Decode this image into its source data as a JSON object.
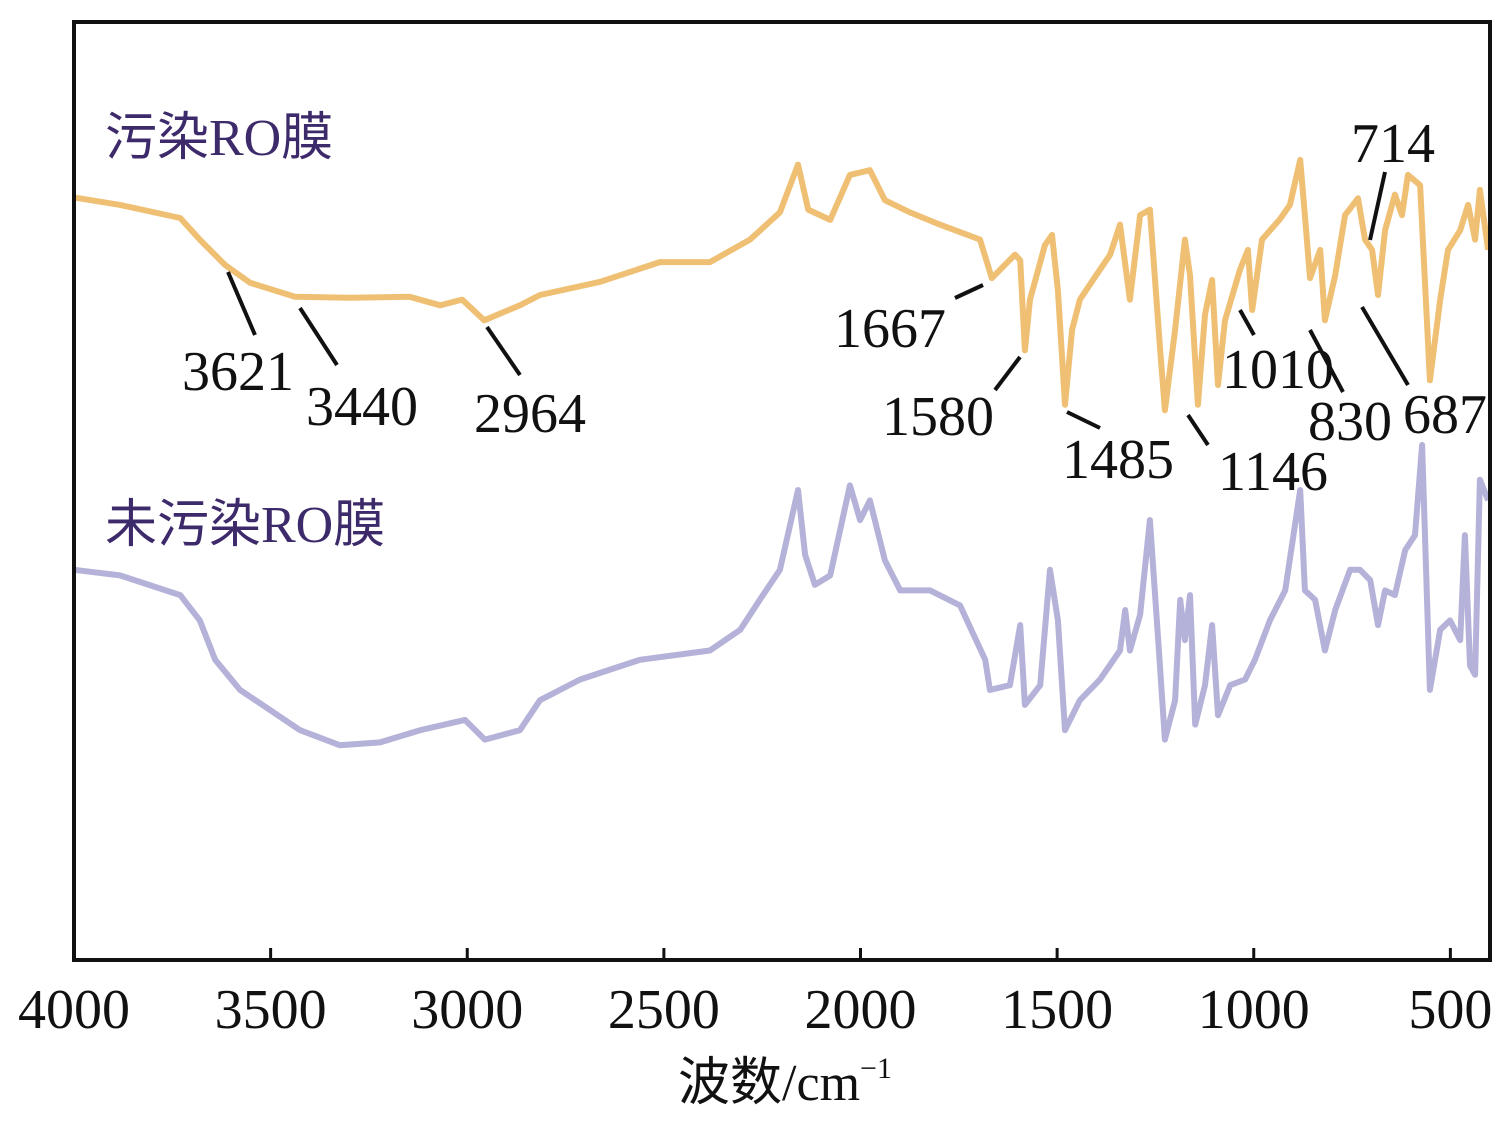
{
  "chart_data": {
    "type": "line",
    "title": "",
    "xlabel": "波数/cm",
    "xlabel_sup": "−1",
    "ylabel": "",
    "xlim": [
      4000,
      400
    ],
    "ylim": [
      0,
      100
    ],
    "x_reversed": true,
    "grid": false,
    "x_ticks": [
      4000,
      3500,
      3000,
      2500,
      2000,
      1500,
      1000,
      500
    ],
    "x_tick_labels": [
      "4000",
      "3500",
      "3000",
      "2500",
      "2000",
      "1500",
      "1000",
      "500"
    ],
    "series": [
      {
        "name": "污染RO膜",
        "color": "#EFC074",
        "points": [
          [
            4000,
            81.3
          ],
          [
            3883,
            80.5
          ],
          [
            3730,
            79.1
          ],
          [
            3680,
            76.8
          ],
          [
            3616,
            74.1
          ],
          [
            3552,
            72.2
          ],
          [
            3438,
            70.7
          ],
          [
            3298,
            70.6
          ],
          [
            3146,
            70.7
          ],
          [
            3069,
            69.8
          ],
          [
            3013,
            70.4
          ],
          [
            2957,
            68.2
          ],
          [
            2866,
            69.8
          ],
          [
            2815,
            70.9
          ],
          [
            2662,
            72.3
          ],
          [
            2510,
            74.4
          ],
          [
            2383,
            74.4
          ],
          [
            2281,
            76.8
          ],
          [
            2205,
            79.7
          ],
          [
            2159,
            84.8
          ],
          [
            2133,
            80.0
          ],
          [
            2077,
            78.9
          ],
          [
            2027,
            83.7
          ],
          [
            1976,
            84.2
          ],
          [
            1938,
            81.0
          ],
          [
            1874,
            79.7
          ],
          [
            1798,
            78.4
          ],
          [
            1696,
            76.8
          ],
          [
            1666,
            72.7
          ],
          [
            1607,
            75.2
          ],
          [
            1594,
            74.6
          ],
          [
            1582,
            65.0
          ],
          [
            1569,
            70.4
          ],
          [
            1531,
            76.2
          ],
          [
            1513,
            77.3
          ],
          [
            1498,
            71.4
          ],
          [
            1480,
            59.2
          ],
          [
            1462,
            67.2
          ],
          [
            1442,
            70.4
          ],
          [
            1391,
            73.6
          ],
          [
            1365,
            75.2
          ],
          [
            1340,
            78.4
          ],
          [
            1315,
            70.4
          ],
          [
            1289,
            79.4
          ],
          [
            1264,
            80.0
          ],
          [
            1238,
            65.0
          ],
          [
            1226,
            58.6
          ],
          [
            1200,
            67.2
          ],
          [
            1175,
            76.8
          ],
          [
            1162,
            73.0
          ],
          [
            1142,
            59.2
          ],
          [
            1124,
            68.8
          ],
          [
            1106,
            72.5
          ],
          [
            1091,
            61.3
          ],
          [
            1073,
            68.2
          ],
          [
            1035,
            73.6
          ],
          [
            1015,
            75.7
          ],
          [
            1004,
            69.3
          ],
          [
            979,
            76.8
          ],
          [
            933,
            79.0
          ],
          [
            908,
            80.5
          ],
          [
            882,
            85.3
          ],
          [
            870,
            79.4
          ],
          [
            857,
            72.7
          ],
          [
            831,
            75.7
          ],
          [
            819,
            68.2
          ],
          [
            793,
            73.0
          ],
          [
            768,
            79.4
          ],
          [
            735,
            81.2
          ],
          [
            717,
            76.8
          ],
          [
            699,
            75.7
          ],
          [
            684,
            70.9
          ],
          [
            666,
            77.8
          ],
          [
            641,
            81.6
          ],
          [
            623,
            79.4
          ],
          [
            608,
            83.7
          ],
          [
            577,
            82.6
          ],
          [
            552,
            61.8
          ],
          [
            526,
            70.4
          ],
          [
            506,
            75.7
          ],
          [
            475,
            77.8
          ],
          [
            455,
            80.5
          ],
          [
            437,
            76.8
          ],
          [
            425,
            82.1
          ],
          [
            404,
            75.7
          ]
        ]
      },
      {
        "name": "未污染RO膜",
        "color": "#B4B2D8",
        "points": [
          [
            4000,
            41.6
          ],
          [
            3883,
            41.0
          ],
          [
            3730,
            38.9
          ],
          [
            3680,
            36.2
          ],
          [
            3641,
            32.0
          ],
          [
            3578,
            28.8
          ],
          [
            3425,
            24.5
          ],
          [
            3324,
            22.9
          ],
          [
            3222,
            23.2
          ],
          [
            3120,
            24.5
          ],
          [
            3006,
            25.6
          ],
          [
            2955,
            23.5
          ],
          [
            2866,
            24.5
          ],
          [
            2815,
            27.7
          ],
          [
            2713,
            29.9
          ],
          [
            2561,
            32.0
          ],
          [
            2383,
            33.0
          ],
          [
            2306,
            35.2
          ],
          [
            2256,
            38.4
          ],
          [
            2205,
            41.6
          ],
          [
            2159,
            50.1
          ],
          [
            2141,
            43.2
          ],
          [
            2116,
            40.0
          ],
          [
            2077,
            41.0
          ],
          [
            2027,
            50.6
          ],
          [
            2001,
            46.9
          ],
          [
            1976,
            49.0
          ],
          [
            1938,
            42.6
          ],
          [
            1899,
            39.4
          ],
          [
            1823,
            39.4
          ],
          [
            1747,
            37.8
          ],
          [
            1683,
            32.0
          ],
          [
            1671,
            28.8
          ],
          [
            1620,
            29.3
          ],
          [
            1594,
            35.7
          ],
          [
            1582,
            27.2
          ],
          [
            1543,
            29.3
          ],
          [
            1518,
            41.6
          ],
          [
            1498,
            36.2
          ],
          [
            1480,
            24.5
          ],
          [
            1442,
            27.7
          ],
          [
            1391,
            29.9
          ],
          [
            1340,
            33.0
          ],
          [
            1327,
            37.3
          ],
          [
            1315,
            33.0
          ],
          [
            1289,
            36.8
          ],
          [
            1264,
            46.9
          ],
          [
            1243,
            34.1
          ],
          [
            1226,
            23.5
          ],
          [
            1200,
            27.7
          ],
          [
            1187,
            38.4
          ],
          [
            1175,
            34.1
          ],
          [
            1162,
            38.9
          ],
          [
            1149,
            25.1
          ],
          [
            1124,
            29.3
          ],
          [
            1106,
            35.7
          ],
          [
            1091,
            26.1
          ],
          [
            1060,
            29.3
          ],
          [
            1022,
            29.9
          ],
          [
            997,
            32.0
          ],
          [
            959,
            36.2
          ],
          [
            920,
            39.4
          ],
          [
            882,
            50.1
          ],
          [
            870,
            39.4
          ],
          [
            844,
            38.4
          ],
          [
            819,
            33.0
          ],
          [
            793,
            37.3
          ],
          [
            755,
            41.6
          ],
          [
            730,
            41.6
          ],
          [
            704,
            40.5
          ],
          [
            684,
            35.7
          ],
          [
            666,
            39.4
          ],
          [
            641,
            38.9
          ],
          [
            615,
            43.7
          ],
          [
            590,
            45.3
          ],
          [
            572,
            54.9
          ],
          [
            552,
            28.8
          ],
          [
            526,
            35.2
          ],
          [
            501,
            36.2
          ],
          [
            475,
            34.1
          ],
          [
            463,
            45.3
          ],
          [
            450,
            31.4
          ],
          [
            437,
            30.4
          ],
          [
            425,
            51.2
          ],
          [
            404,
            49.0
          ]
        ]
      }
    ],
    "annotations": [
      "3621",
      "3440",
      "2964",
      "1667",
      "1580",
      "1485",
      "1146",
      "1010",
      "830",
      "687",
      "714"
    ],
    "series_label_color": "#3D2A6A"
  }
}
